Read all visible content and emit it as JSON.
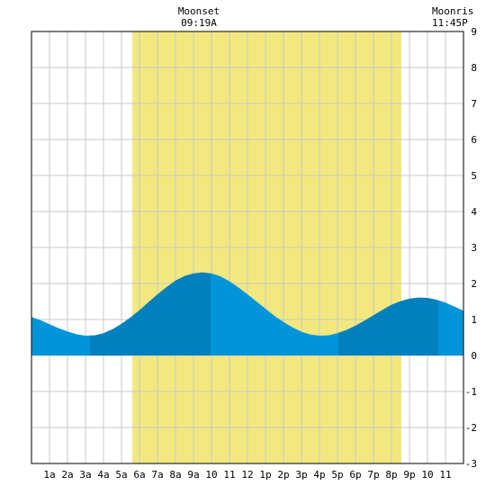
{
  "chart_data": {
    "type": "area",
    "title": "",
    "xlabel": "",
    "ylabel": "",
    "x_tick_labels": [
      "1a",
      "2a",
      "3a",
      "4a",
      "5a",
      "6a",
      "7a",
      "8a",
      "9a",
      "10",
      "11",
      "12",
      "1p",
      "2p",
      "3p",
      "4p",
      "5p",
      "6p",
      "7p",
      "8p",
      "9p",
      "10",
      "11"
    ],
    "x_range_hours": [
      0,
      24
    ],
    "ylim": [
      -3,
      9
    ],
    "y_tick_labels": [
      "9",
      "8",
      "7",
      "6",
      "5",
      "4",
      "3",
      "2",
      "1",
      "0",
      "-1",
      "-2",
      "-3"
    ],
    "grid": true,
    "daylight_hours": [
      5.6,
      20.55
    ],
    "annotations": [
      {
        "label": "Moonset",
        "time": "09:19A",
        "hour": 9.3
      },
      {
        "label": "Moonris",
        "time": "11:45P",
        "hour": 23.75
      }
    ],
    "series": [
      {
        "x": [
          0,
          0.5,
          1,
          1.5,
          2,
          2.5,
          3,
          3.5,
          4,
          4.5,
          5,
          5.5,
          6,
          6.5,
          7,
          7.5,
          8,
          8.5,
          9,
          9.5,
          10,
          10.5,
          11,
          11.5,
          12,
          12.5,
          13,
          13.5,
          14,
          14.5,
          15,
          15.5,
          16,
          16.5,
          17,
          17.5,
          18,
          18.5,
          19,
          19.5,
          20,
          20.5,
          21,
          21.5,
          22,
          22.5,
          23,
          23.5,
          24
        ],
        "values": [
          1.07,
          0.98,
          0.87,
          0.76,
          0.67,
          0.59,
          0.55,
          0.56,
          0.62,
          0.73,
          0.88,
          1.06,
          1.26,
          1.48,
          1.7,
          1.9,
          2.08,
          2.21,
          2.28,
          2.31,
          2.28,
          2.2,
          2.06,
          1.89,
          1.7,
          1.5,
          1.3,
          1.1,
          0.93,
          0.78,
          0.66,
          0.58,
          0.55,
          0.56,
          0.62,
          0.71,
          0.83,
          0.97,
          1.12,
          1.27,
          1.41,
          1.51,
          1.58,
          1.61,
          1.6,
          1.55,
          1.47,
          1.36,
          1.24
        ]
      }
    ],
    "band_boundaries_hours": [
      3.25,
      9.95,
      17.05,
      22.6
    ],
    "colors": {
      "daylight": "#f2e87f",
      "tide_light": "#0095d8",
      "tide_dark": "#0080bd",
      "grid": "#c8c8c8",
      "axis": "#000000"
    }
  }
}
